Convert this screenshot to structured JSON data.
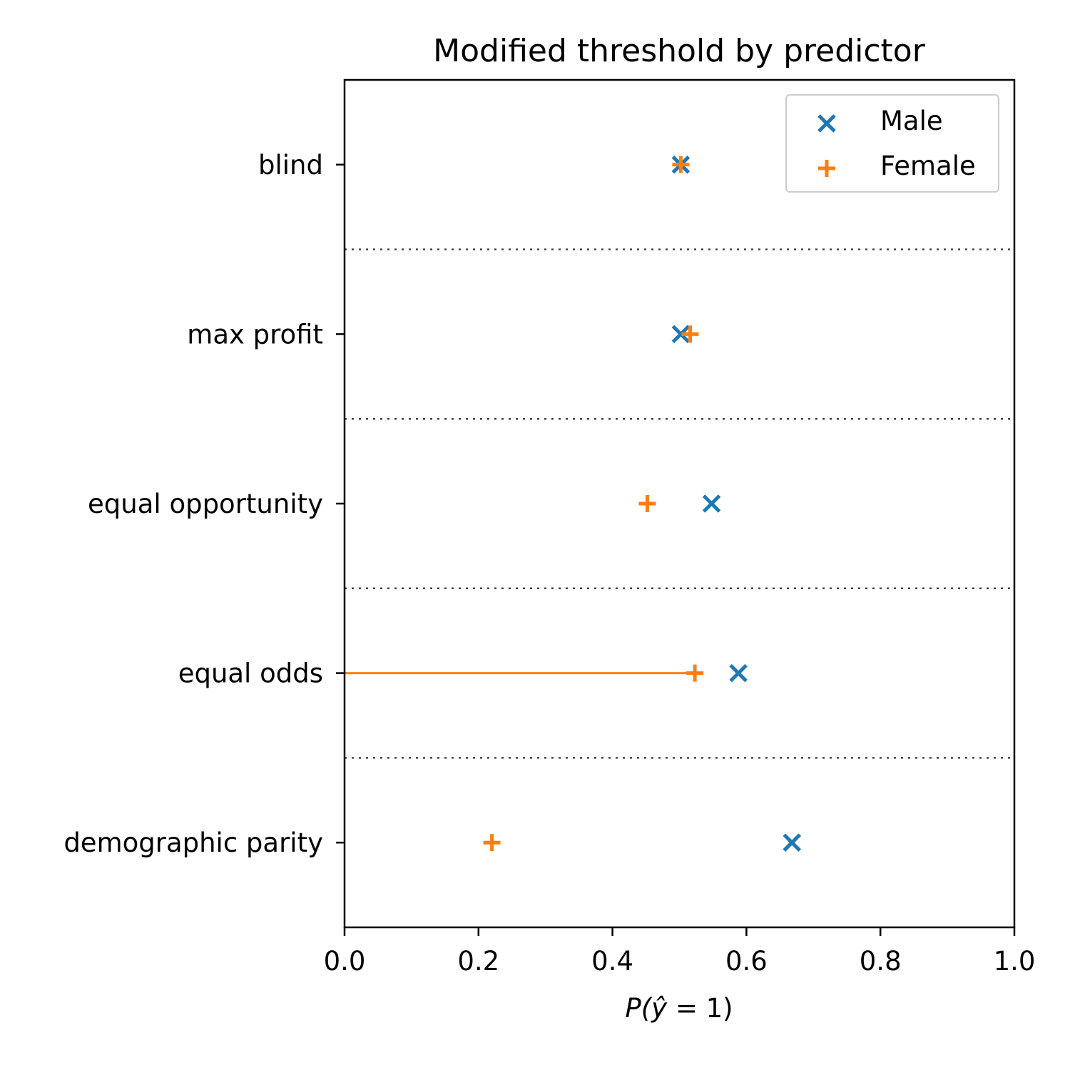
{
  "chart_data": {
    "type": "scatter",
    "title": "Modified threshold by predictor",
    "xlabel": "P(ŷ = 1)",
    "ylabel": "",
    "xlim": [
      0.0,
      1.0
    ],
    "x_ticks": [
      "0.0",
      "0.2",
      "0.4",
      "0.6",
      "0.8",
      "1.0"
    ],
    "categories": [
      "blind",
      "max profit",
      "equal opportunity",
      "equal odds",
      "demographic parity"
    ],
    "grid": "dotted separators between categories",
    "legend": "top-right",
    "series": [
      {
        "name": "Male",
        "marker": "x",
        "color": "#1f77b4",
        "values": [
          0.502,
          0.502,
          0.548,
          0.588,
          0.668
        ]
      },
      {
        "name": "Female",
        "marker": "+",
        "color": "#ff7f0e",
        "values": [
          0.502,
          0.516,
          0.452,
          0.523,
          0.22
        ]
      }
    ],
    "annotations": [
      {
        "type": "interval",
        "category": "equal odds",
        "series": "Female",
        "from": 0.0,
        "to": 0.535,
        "color": "#ff7f0e"
      }
    ]
  }
}
